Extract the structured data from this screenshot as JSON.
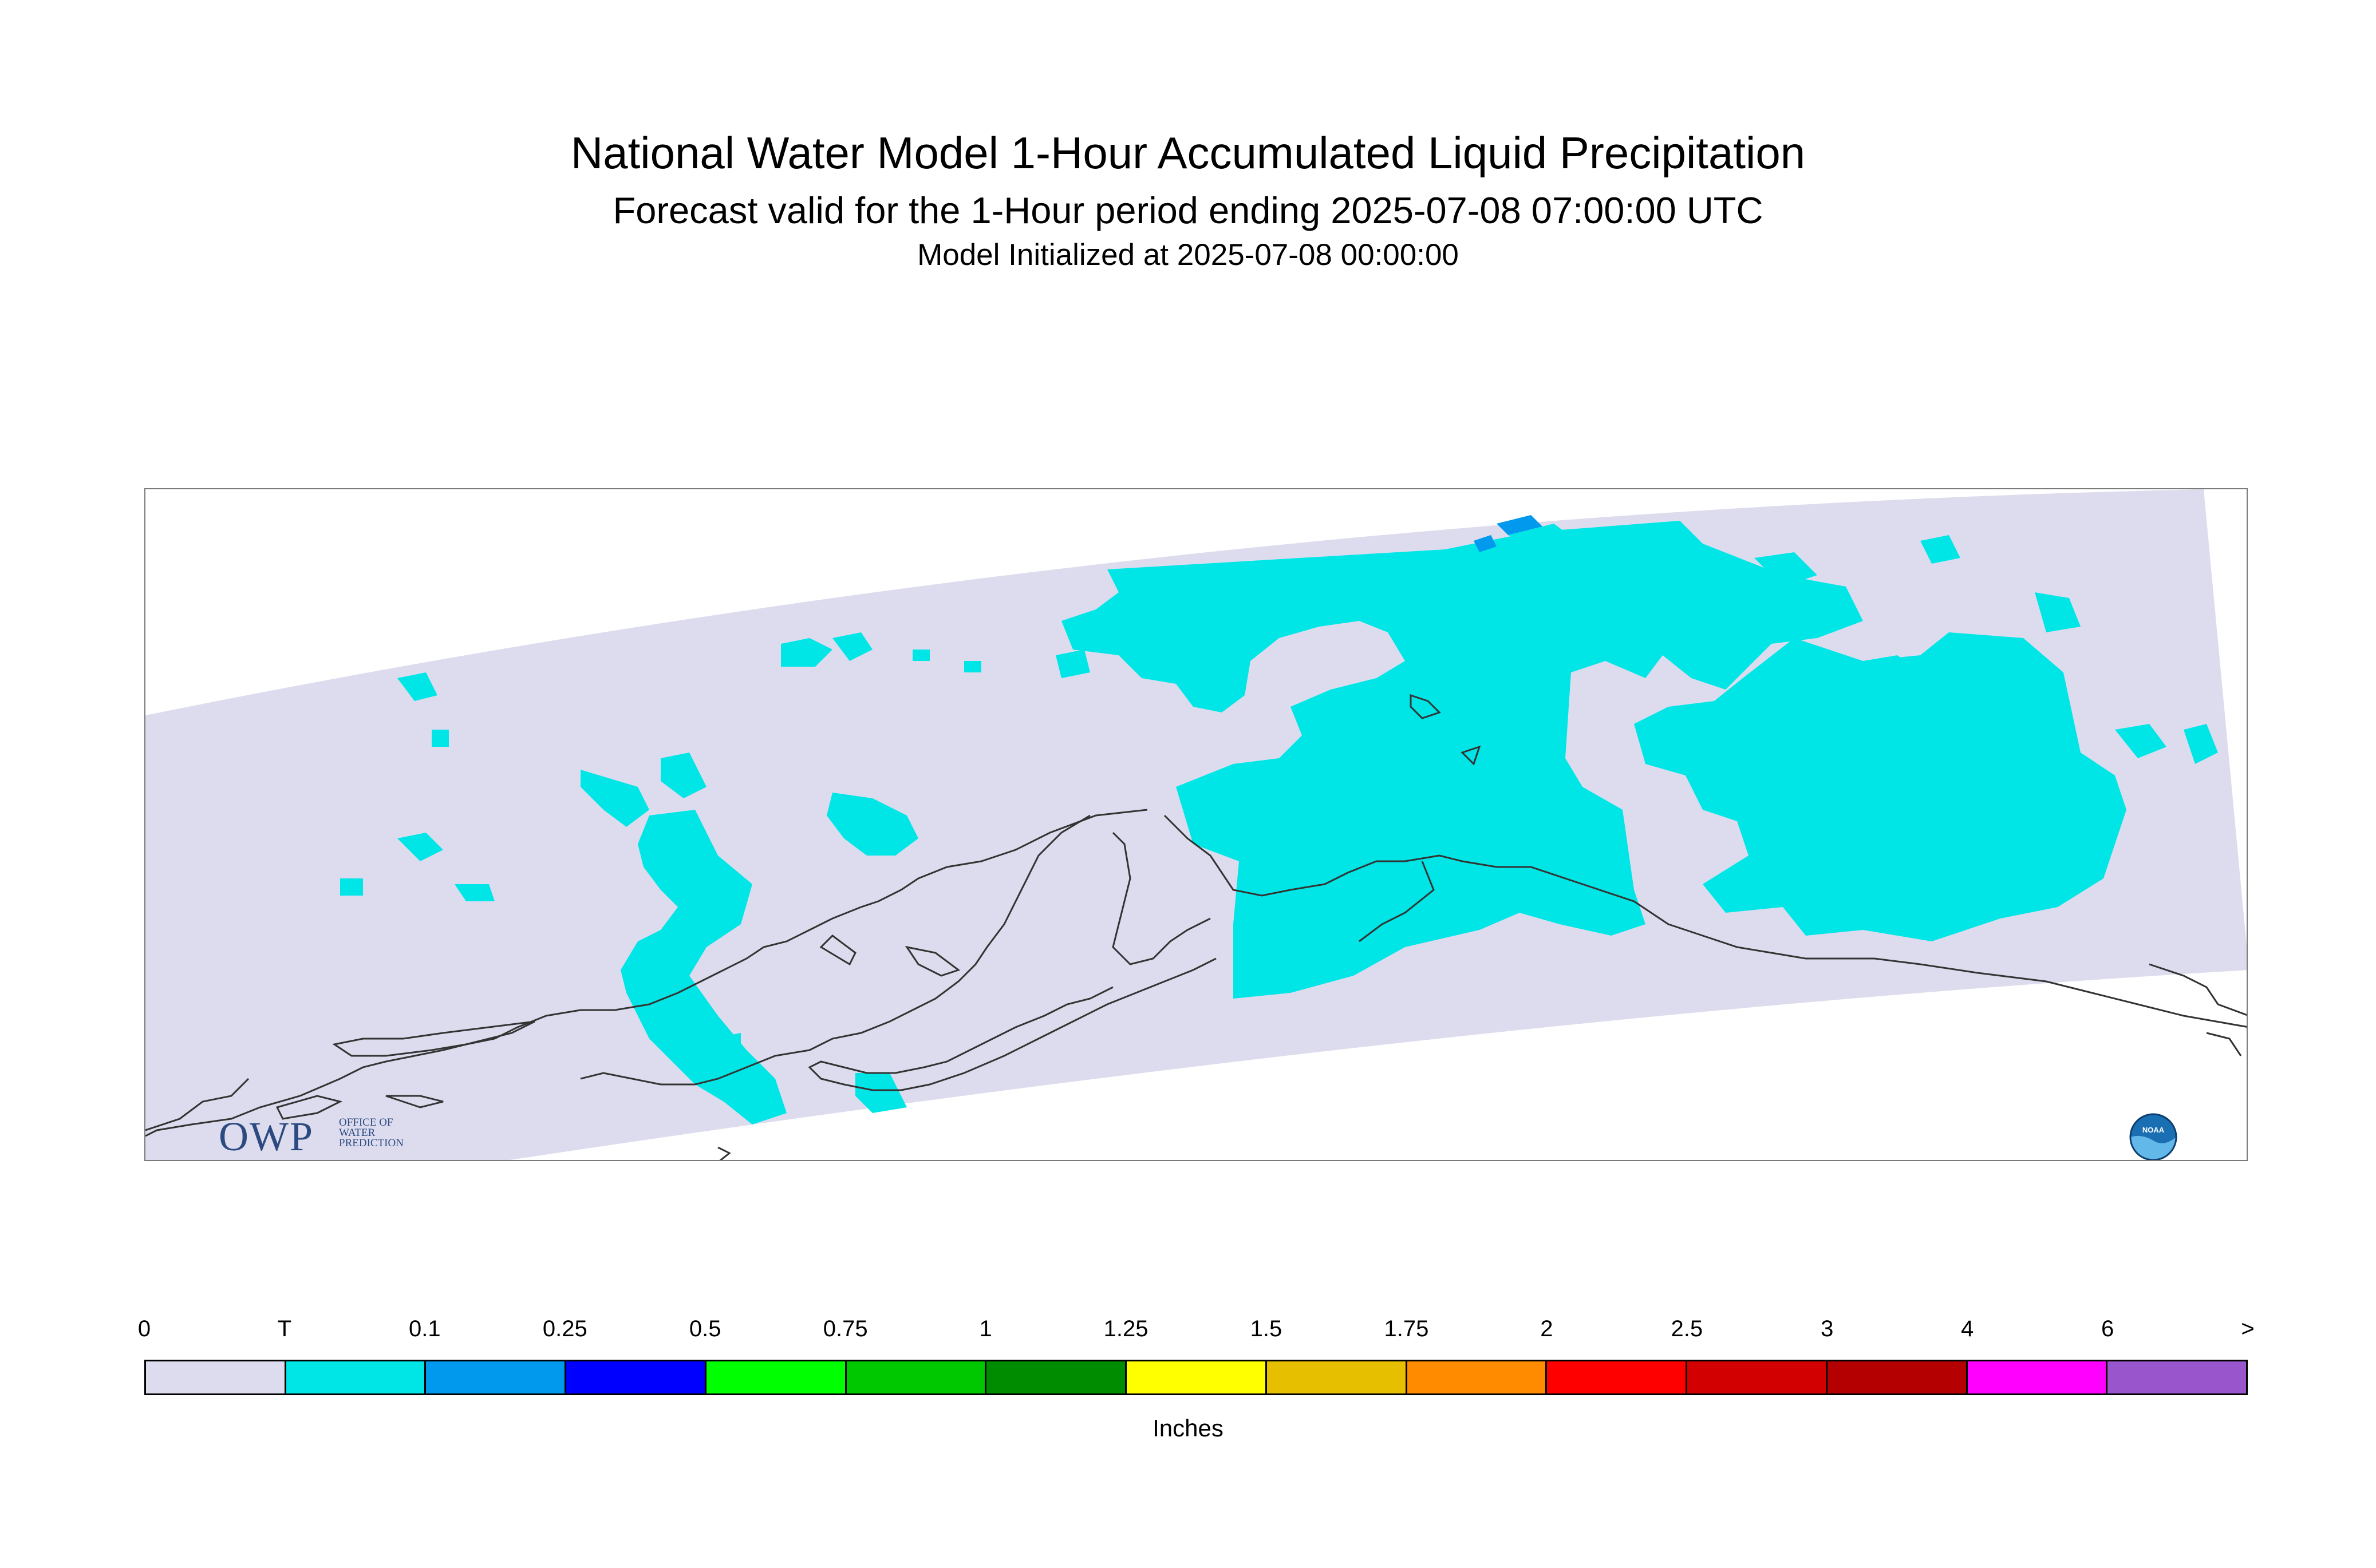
{
  "title": "National Water Model 1-Hour Accumulated Liquid Precipitation",
  "subtitle": "Forecast valid for the 1-Hour period ending 2025-07-08 07:00:00 UTC",
  "init_text": "Model Initialized at 2025-07-08 00:00:00",
  "units": "Inches",
  "logo": {
    "owp_letters": "OWP",
    "owp_text": [
      "OFFICE OF",
      "WATER",
      "PREDICTION"
    ],
    "noaa_text": "NOAA"
  },
  "colors": {
    "domain_fill": "#dcdcee",
    "precip_trace": "#00e6e6",
    "precip_light": "#0099ee",
    "coastline": "#333333"
  },
  "legend": {
    "labels": [
      "0",
      "T",
      "0.1",
      "0.25",
      "0.5",
      "0.75",
      "1",
      "1.25",
      "1.5",
      "1.75",
      "2",
      "2.5",
      "3",
      "4",
      "6",
      ">"
    ],
    "colors": [
      "#dcdcee",
      "#00e6e6",
      "#0099ee",
      "#0000ff",
      "#00ff00",
      "#00c800",
      "#008c00",
      "#ffff00",
      "#e6c000",
      "#ff8c00",
      "#ff0000",
      "#d20000",
      "#b40000",
      "#ff00ff",
      "#9955cc"
    ]
  }
}
